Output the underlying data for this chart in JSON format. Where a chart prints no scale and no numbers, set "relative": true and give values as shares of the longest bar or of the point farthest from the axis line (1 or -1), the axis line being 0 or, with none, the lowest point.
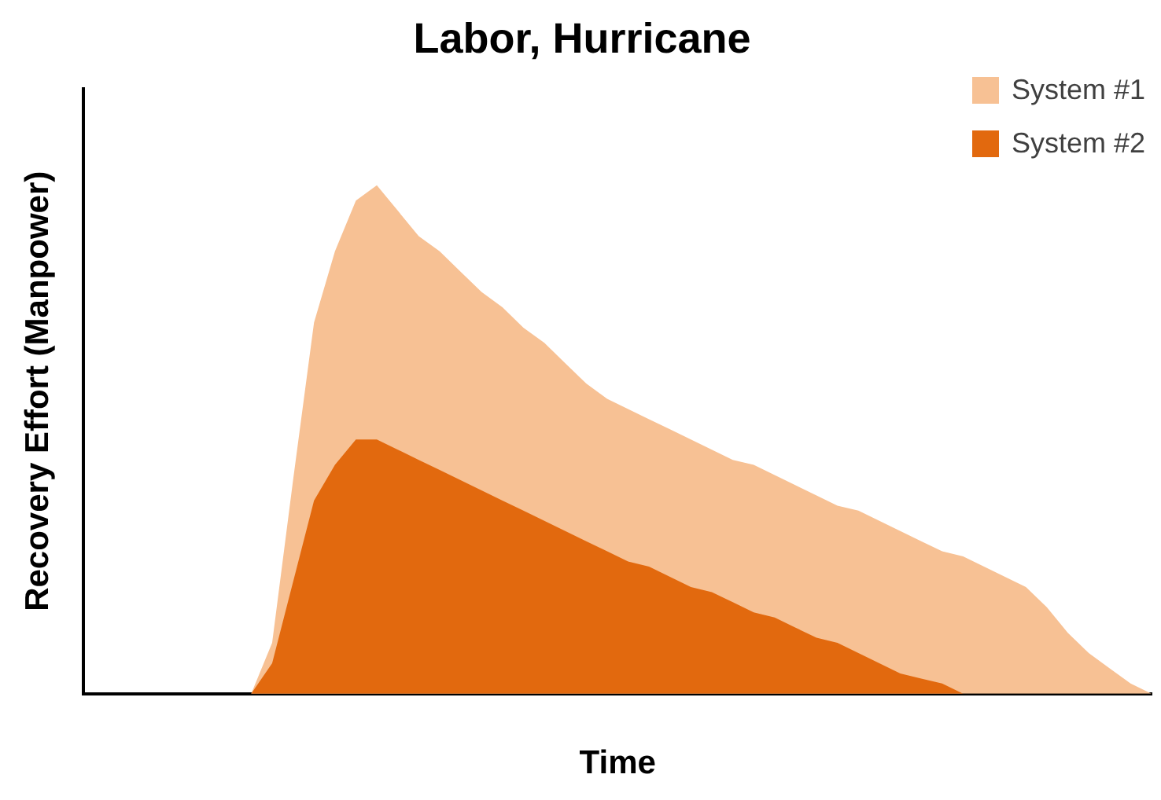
{
  "chart_data": {
    "type": "area",
    "title": "Labor, Hurricane",
    "xlabel": "Time",
    "ylabel": "Recovery Effort (Manpower)",
    "relative": true,
    "legend": "top right",
    "grid": false,
    "categories": [
      null,
      null,
      null,
      null,
      null,
      null,
      null,
      null,
      null,
      null,
      null,
      null,
      null,
      null,
      null,
      null,
      null,
      null,
      null,
      null,
      null,
      null,
      null,
      null,
      null,
      null,
      null,
      null,
      null,
      null,
      null,
      null,
      null,
      null,
      null,
      null,
      null,
      null,
      null,
      null,
      null,
      null,
      null,
      null,
      null,
      null,
      null,
      null,
      null,
      null,
      null,
      null
    ],
    "series": [
      {
        "name": "System #1",
        "color": "#f7c194",
        "values": [
          0,
          0,
          0,
          0,
          0,
          0,
          0,
          0,
          0,
          0.1,
          0.42,
          0.73,
          0.87,
          0.97,
          1,
          0.95,
          0.9,
          0.87,
          0.83,
          0.79,
          0.76,
          0.72,
          0.69,
          0.65,
          0.61,
          0.58,
          0.56,
          0.54,
          0.52,
          0.5,
          0.48,
          0.46,
          0.45,
          0.43,
          0.41,
          0.39,
          0.37,
          0.36,
          0.34,
          0.32,
          0.3,
          0.28,
          0.27,
          0.25,
          0.23,
          0.21,
          0.17,
          0.12,
          0.08,
          0.05,
          0.02,
          0
        ]
      },
      {
        "name": "System #2",
        "color": "#e2690e",
        "values": [
          0,
          0,
          0,
          0,
          0,
          0,
          0,
          0,
          0,
          0.06,
          0.22,
          0.38,
          0.45,
          0.5,
          0.5,
          0.48,
          0.46,
          0.44,
          0.42,
          0.4,
          0.38,
          0.36,
          0.34,
          0.32,
          0.3,
          0.28,
          0.26,
          0.25,
          0.23,
          0.21,
          0.2,
          0.18,
          0.16,
          0.15,
          0.13,
          0.11,
          0.1,
          0.08,
          0.06,
          0.04,
          0.03,
          0.02,
          0,
          0,
          0,
          0,
          0,
          0,
          0,
          0,
          0,
          0
        ]
      }
    ]
  }
}
